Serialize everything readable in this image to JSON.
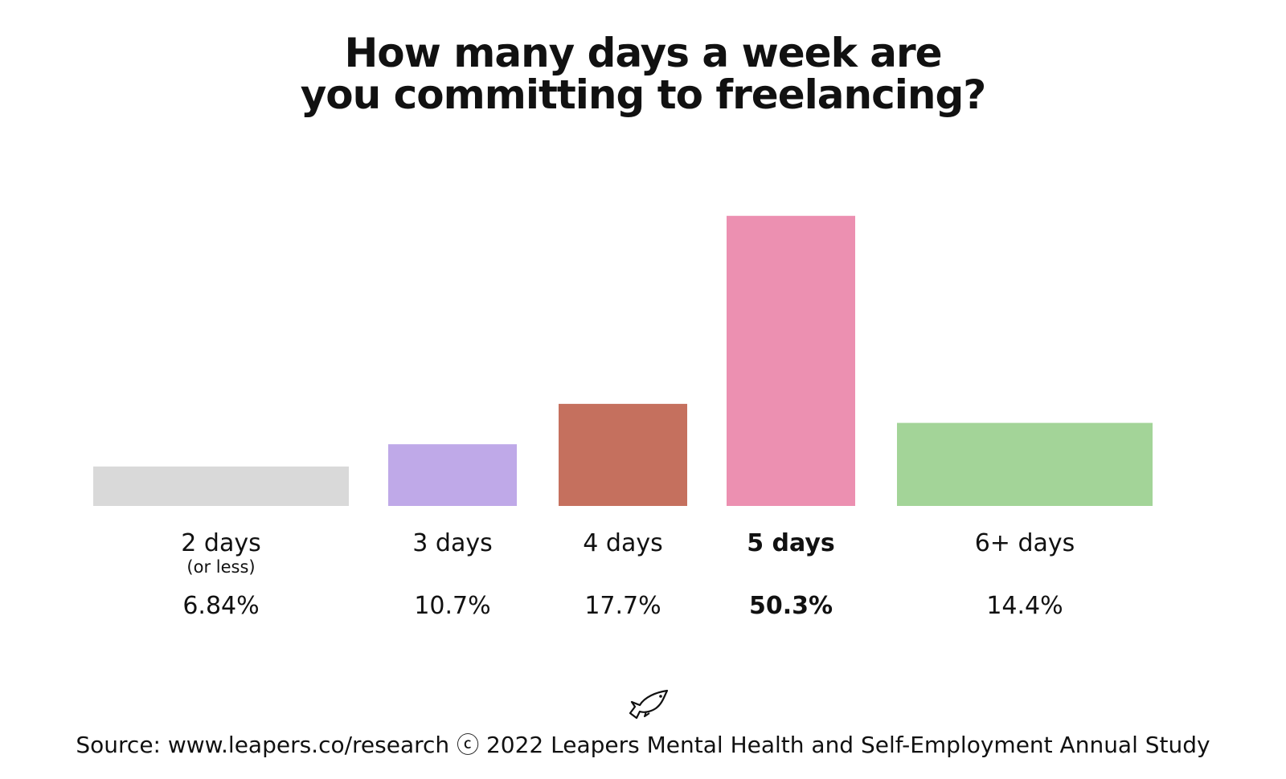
{
  "title_lines": [
    "How many days a week are",
    "you committing to freelancing?"
  ],
  "source": "Source: www.leapers.co/research ⓒ 2022 Leapers Mental Health and Self-Employment Annual Study",
  "logo_icon": "fish-icon",
  "chart_data": {
    "type": "bar",
    "title": "How many days a week are you committing to freelancing?",
    "xlabel": "",
    "ylabel": "",
    "ylim": [
      0,
      55
    ],
    "grid": false,
    "categories": [
      "2 days",
      "3 days",
      "4 days",
      "5 days",
      "6+ days"
    ],
    "category_sublabels": [
      "(or less)",
      "",
      "",
      "",
      ""
    ],
    "values": [
      6.84,
      10.7,
      17.7,
      50.3,
      14.4
    ],
    "value_labels": [
      "6.84%",
      "10.7%",
      "17.7%",
      "50.3%",
      "14.4%"
    ],
    "highlight_index": 3,
    "colors": [
      "#d9d9d9",
      "#bfa9e8",
      "#c5705e",
      "#ec90b1",
      "#a3d498"
    ]
  }
}
